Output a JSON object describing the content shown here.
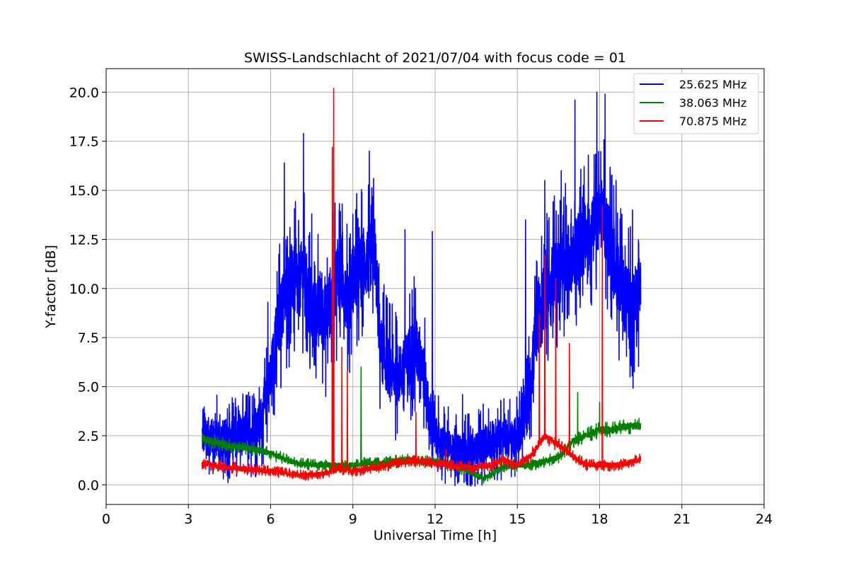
{
  "chart_data": {
    "type": "line",
    "title": "SWISS-Landschlacht of 2021/07/04 with focus code = 01",
    "xlabel": "Universal Time [h]",
    "ylabel": "Y-factor [dB]",
    "xlim": [
      0,
      24
    ],
    "ylim": [
      -1.0,
      21.2
    ],
    "xticks": [
      0,
      3,
      6,
      9,
      12,
      15,
      18,
      21,
      24
    ],
    "xtick_labels": [
      "0",
      "3",
      "6",
      "9",
      "12",
      "15",
      "18",
      "21",
      "24"
    ],
    "yticks": [
      0.0,
      2.5,
      5.0,
      7.5,
      10.0,
      12.5,
      15.0,
      17.5,
      20.0
    ],
    "ytick_labels": [
      "0.0",
      "2.5",
      "5.0",
      "7.5",
      "10.0",
      "12.5",
      "15.0",
      "17.5",
      "20.0"
    ],
    "grid": true,
    "legend_position": "top-right",
    "series": [
      {
        "name": "25.625 MHz",
        "color": "#0000ff",
        "x": [
          3.5,
          4.0,
          4.5,
          5.0,
          5.5,
          5.8,
          6.0,
          6.2,
          6.5,
          6.8,
          7.0,
          7.2,
          7.5,
          7.8,
          8.0,
          8.3,
          8.5,
          8.8,
          9.0,
          9.3,
          9.6,
          9.8,
          10.0,
          10.3,
          10.6,
          10.9,
          11.2,
          11.5,
          11.8,
          12.0,
          12.3,
          12.6,
          12.9,
          13.2,
          13.5,
          13.8,
          14.1,
          14.4,
          14.7,
          15.0,
          15.3,
          15.5,
          15.7,
          16.0,
          16.3,
          16.6,
          16.9,
          17.2,
          17.5,
          17.8,
          18.0,
          18.3,
          18.6,
          18.9,
          19.2,
          19.5
        ],
        "y": [
          2.5,
          2.4,
          2.3,
          2.5,
          2.8,
          4.0,
          5.5,
          7.5,
          9.5,
          10.5,
          10.0,
          11.0,
          8.5,
          9.0,
          8.5,
          10.0,
          11.0,
          9.5,
          10.5,
          11.0,
          11.5,
          12.0,
          7.0,
          6.0,
          5.5,
          6.0,
          7.0,
          6.5,
          3.5,
          2.5,
          2.0,
          1.8,
          1.7,
          1.6,
          1.8,
          2.0,
          2.3,
          2.5,
          2.3,
          2.5,
          3.5,
          5.5,
          8.0,
          9.5,
          10.5,
          11.0,
          11.5,
          12.0,
          12.5,
          13.0,
          14.0,
          13.0,
          11.0,
          9.5,
          9.0,
          10.0
        ],
        "peaks": [
          [
            3.6,
            3.6
          ],
          [
            5.9,
            9.3
          ],
          [
            6.5,
            16.4
          ],
          [
            7.2,
            17.9
          ],
          [
            7.5,
            13.8
          ],
          [
            8.5,
            14.0
          ],
          [
            9.6,
            17.0
          ],
          [
            10.9,
            13.0
          ],
          [
            11.9,
            12.9
          ],
          [
            13.0,
            4.6
          ],
          [
            15.3,
            13.5
          ],
          [
            16.0,
            15.5
          ],
          [
            16.6,
            16.0
          ],
          [
            17.1,
            19.6
          ],
          [
            17.9,
            20.0
          ],
          [
            18.2,
            19.9
          ],
          [
            18.6,
            15.5
          ],
          [
            19.2,
            14.0
          ]
        ],
        "spread": 3.0
      },
      {
        "name": "38.063 MHz",
        "color": "#008000",
        "x": [
          3.5,
          4.0,
          4.5,
          5.0,
          5.5,
          6.0,
          6.5,
          7.0,
          7.5,
          8.0,
          8.5,
          9.0,
          9.5,
          10.0,
          10.5,
          11.0,
          11.5,
          12.0,
          12.5,
          13.0,
          13.5,
          13.8,
          14.0,
          14.5,
          15.0,
          15.5,
          16.0,
          16.5,
          17.0,
          17.5,
          18.0,
          18.5,
          19.0,
          19.5
        ],
        "y": [
          2.3,
          2.2,
          2.0,
          1.9,
          1.8,
          1.6,
          1.3,
          1.1,
          1.0,
          1.0,
          1.0,
          1.0,
          1.1,
          1.1,
          1.2,
          1.3,
          1.2,
          1.2,
          1.0,
          0.8,
          0.5,
          0.3,
          0.5,
          0.9,
          1.0,
          1.0,
          1.2,
          1.4,
          2.2,
          2.5,
          2.8,
          2.8,
          3.0,
          3.0
        ],
        "peaks": [
          [
            9.3,
            6.0
          ],
          [
            17.2,
            4.7
          ],
          [
            18.0,
            4.2
          ]
        ],
        "spread": 0.5
      },
      {
        "name": "70.875 MHz",
        "color": "#ff0000",
        "x": [
          3.5,
          4.0,
          4.5,
          5.0,
          5.5,
          6.0,
          6.5,
          7.0,
          7.5,
          8.0,
          8.5,
          9.0,
          9.5,
          10.0,
          10.5,
          11.0,
          11.5,
          12.0,
          12.5,
          13.0,
          13.5,
          14.0,
          14.5,
          15.0,
          15.5,
          16.0,
          16.5,
          17.0,
          17.5,
          18.0,
          18.5,
          19.0,
          19.5
        ],
        "y": [
          1.1,
          1.0,
          0.9,
          0.8,
          0.75,
          0.7,
          0.6,
          0.5,
          0.5,
          0.6,
          0.8,
          0.7,
          0.8,
          0.9,
          1.1,
          1.2,
          1.2,
          1.1,
          1.0,
          0.9,
          0.9,
          1.0,
          1.3,
          1.0,
          1.5,
          2.5,
          2.0,
          1.5,
          1.0,
          1.0,
          1.0,
          1.1,
          1.3
        ],
        "peaks": [
          [
            8.3,
            20.2
          ],
          [
            8.25,
            17.2
          ],
          [
            8.6,
            7.0
          ],
          [
            8.8,
            5.8
          ],
          [
            11.3,
            3.7
          ],
          [
            12.4,
            1.8
          ],
          [
            15.8,
            8.7
          ],
          [
            16.0,
            11.7
          ],
          [
            16.4,
            10.5
          ],
          [
            16.9,
            7.2
          ],
          [
            18.1,
            14.2
          ]
        ],
        "spread": 0.5
      }
    ]
  }
}
